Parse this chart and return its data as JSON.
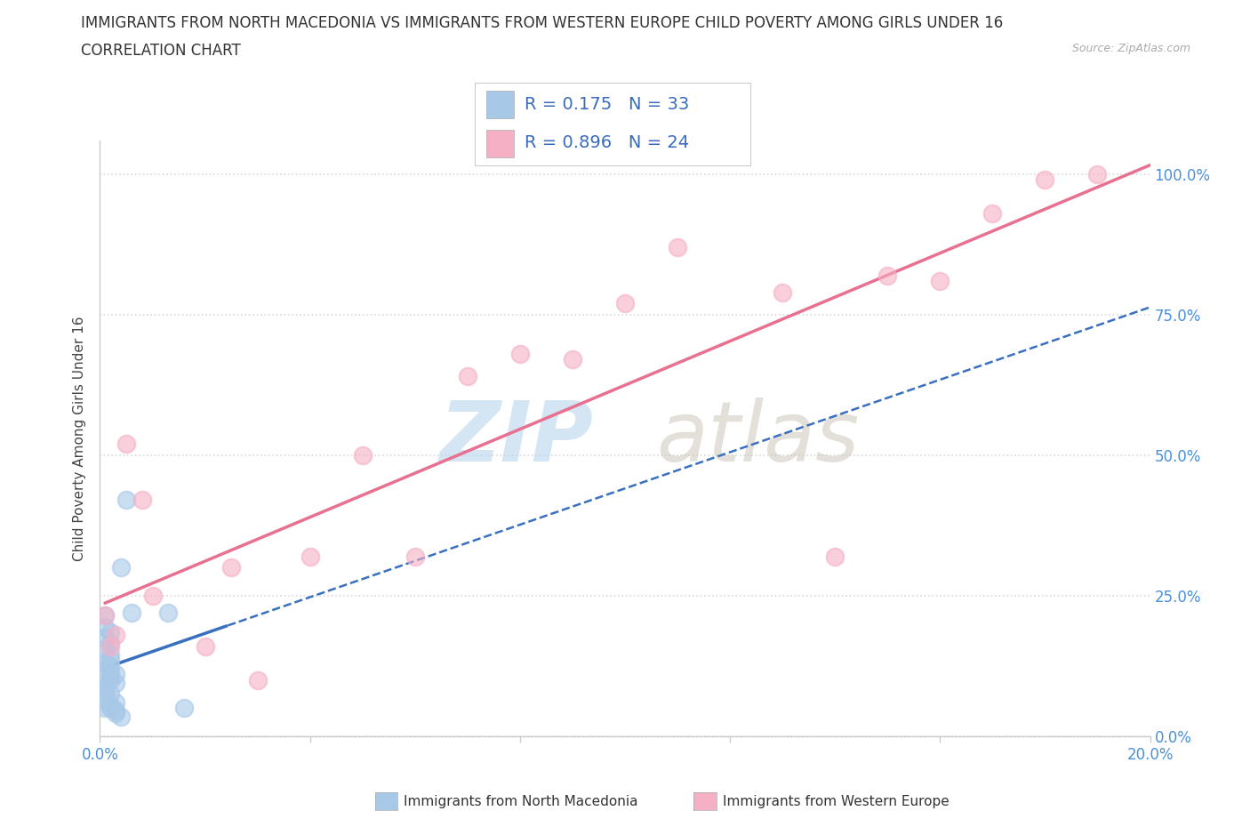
{
  "title": "IMMIGRANTS FROM NORTH MACEDONIA VS IMMIGRANTS FROM WESTERN EUROPE CHILD POVERTY AMONG GIRLS UNDER 16",
  "subtitle": "CORRELATION CHART",
  "source": "Source: ZipAtlas.com",
  "ylabel": "Child Poverty Among Girls Under 16",
  "series1_name": "Immigrants from North Macedonia",
  "series1_color": "#a8c8e8",
  "series1_R": 0.175,
  "series1_N": 33,
  "series1_x": [
    0.001,
    0.001,
    0.002,
    0.001,
    0.002,
    0.001,
    0.002,
    0.002,
    0.001,
    0.002,
    0.001,
    0.002,
    0.003,
    0.002,
    0.002,
    0.003,
    0.001,
    0.001,
    0.001,
    0.002,
    0.001,
    0.003,
    0.002,
    0.001,
    0.002,
    0.003,
    0.003,
    0.004,
    0.004,
    0.005,
    0.006,
    0.013,
    0.016
  ],
  "series1_y": [
    0.215,
    0.195,
    0.185,
    0.175,
    0.165,
    0.155,
    0.145,
    0.135,
    0.13,
    0.125,
    0.12,
    0.115,
    0.11,
    0.105,
    0.1,
    0.095,
    0.09,
    0.085,
    0.08,
    0.075,
    0.065,
    0.06,
    0.055,
    0.05,
    0.05,
    0.045,
    0.04,
    0.035,
    0.3,
    0.42,
    0.22,
    0.22,
    0.05
  ],
  "series2_name": "Immigrants from Western Europe",
  "series2_color": "#f5b0c5",
  "series2_R": 0.896,
  "series2_N": 24,
  "series2_x": [
    0.001,
    0.002,
    0.003,
    0.005,
    0.008,
    0.01,
    0.02,
    0.025,
    0.03,
    0.04,
    0.05,
    0.06,
    0.07,
    0.08,
    0.09,
    0.1,
    0.11,
    0.13,
    0.14,
    0.15,
    0.16,
    0.17,
    0.18,
    0.19
  ],
  "series2_y": [
    0.215,
    0.16,
    0.18,
    0.52,
    0.42,
    0.25,
    0.16,
    0.3,
    0.1,
    0.32,
    0.5,
    0.32,
    0.64,
    0.68,
    0.67,
    0.77,
    0.87,
    0.79,
    0.32,
    0.82,
    0.81,
    0.93,
    0.99,
    1.0
  ],
  "xmin": 0.0,
  "xmax": 0.2,
  "ymin": 0.0,
  "ymax": 1.06,
  "yticks": [
    0.0,
    0.25,
    0.5,
    0.75,
    1.0
  ],
  "ytick_labels_right": [
    "0.0%",
    "25.0%",
    "50.0%",
    "75.0%",
    "100.0%"
  ],
  "xtick_vals": [
    0.0,
    0.04,
    0.08,
    0.12,
    0.16,
    0.2
  ],
  "xtick_labels": [
    "0.0%",
    "",
    "",
    "",
    "",
    "20.0%"
  ],
  "legend_color": "#3a6bbf",
  "trendline1_color": "#3a70c0",
  "trendline2_color": "#e87090",
  "bg_color": "#ffffff",
  "grid_color": "#d8d8d8",
  "tick_fontsize": 12,
  "legend_fontsize": 14,
  "right_tick_color": "#4a90d9",
  "bottom_tick_color": "#4a90d9"
}
